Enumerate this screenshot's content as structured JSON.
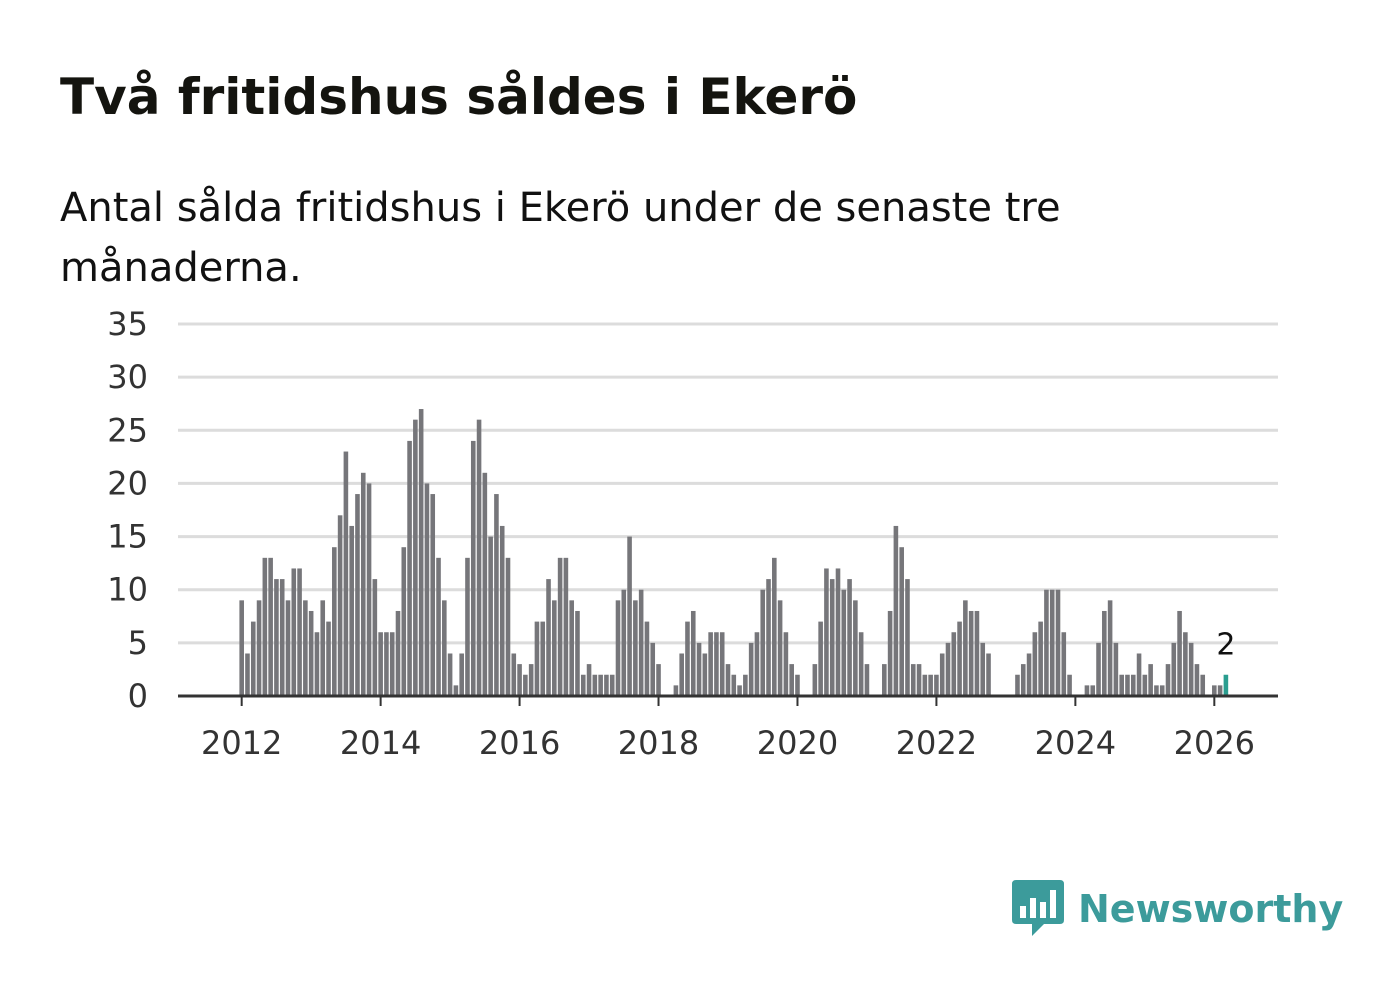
{
  "title": "Två fritidshus såldes i Ekerö",
  "subtitle": "Antal sålda fritidshus i Ekerö under de senaste tre månaderna.",
  "brand": {
    "name": "Newsworthy",
    "icon": "newsworthy-logo-icon",
    "color": "#3c9b9b"
  },
  "chart_data": {
    "type": "bar",
    "title": "Två fritidshus såldes i Ekerö",
    "subtitle": "Antal sålda fritidshus i Ekerö under de senaste tre månaderna.",
    "frequency": "monthly",
    "start": "2012-01",
    "ylim": [
      0,
      35
    ],
    "yticks": [
      0,
      5,
      10,
      15,
      20,
      25,
      30,
      35
    ],
    "xticks": [
      "2012",
      "2014",
      "2016",
      "2018",
      "2020",
      "2022",
      "2024",
      "2026"
    ],
    "xlim": [
      "2011-02",
      "2026-12"
    ],
    "grid": true,
    "bar_color": "#76767a",
    "highlight_color": "#2a9d8f",
    "highlight_label": "2",
    "values": [
      9,
      4,
      7,
      9,
      13,
      13,
      11,
      11,
      9,
      12,
      12,
      9,
      8,
      6,
      9,
      7,
      14,
      17,
      23,
      16,
      19,
      21,
      20,
      11,
      6,
      6,
      6,
      8,
      14,
      24,
      26,
      27,
      20,
      19,
      13,
      9,
      4,
      1,
      4,
      13,
      24,
      26,
      21,
      15,
      19,
      16,
      13,
      4,
      3,
      2,
      3,
      7,
      7,
      11,
      9,
      13,
      13,
      9,
      8,
      2,
      3,
      2,
      2,
      2,
      2,
      9,
      10,
      15,
      9,
      10,
      7,
      5,
      3,
      0,
      0,
      1,
      4,
      7,
      8,
      5,
      4,
      6,
      6,
      6,
      3,
      2,
      1,
      2,
      5,
      6,
      10,
      11,
      13,
      9,
      6,
      3,
      2,
      0,
      0,
      3,
      7,
      12,
      11,
      12,
      10,
      11,
      9,
      6,
      3,
      0,
      0,
      3,
      8,
      16,
      14,
      11,
      3,
      3,
      2,
      2,
      2,
      4,
      5,
      6,
      7,
      9,
      8,
      8,
      5,
      4,
      0,
      0,
      0,
      0,
      2,
      3,
      4,
      6,
      7,
      10,
      10,
      10,
      6,
      2,
      0,
      0,
      1,
      1,
      5,
      8,
      9,
      5,
      2,
      2,
      2,
      4,
      2,
      3,
      1,
      1,
      3,
      5,
      8,
      6,
      5,
      3,
      2,
      0,
      1,
      1,
      2
    ]
  }
}
